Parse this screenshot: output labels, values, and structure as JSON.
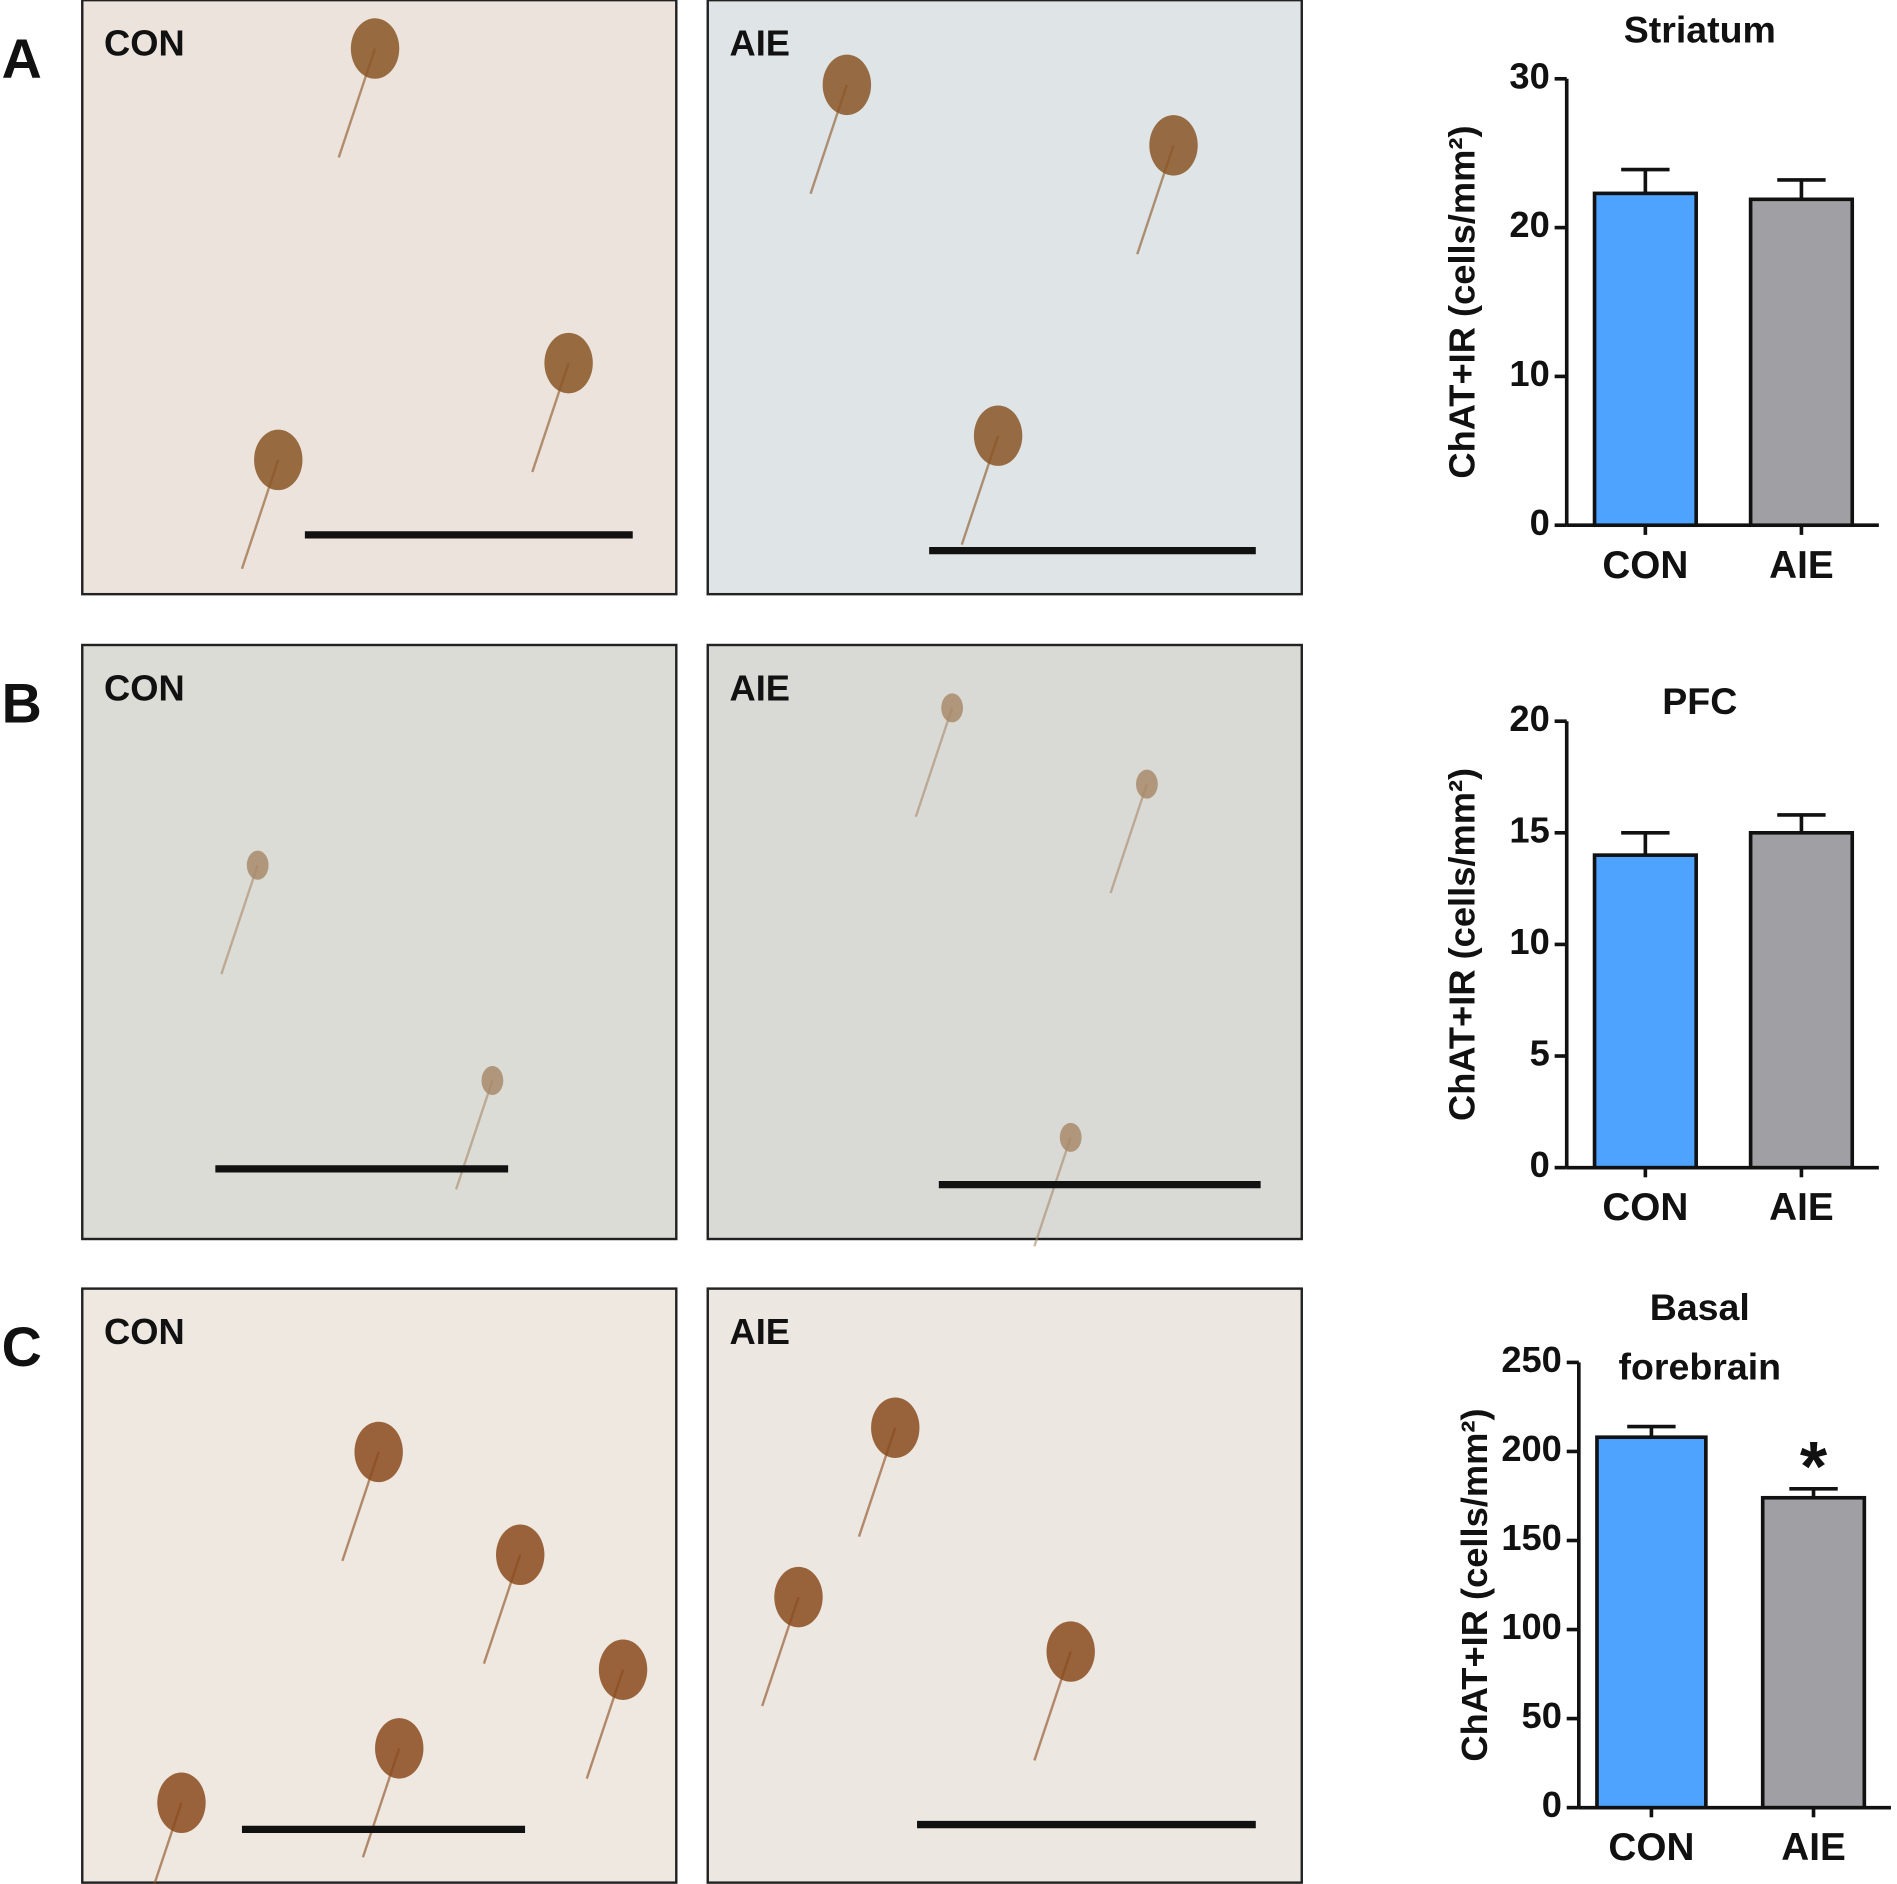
{
  "panels": [
    {
      "letter": "A",
      "images": [
        "CON",
        "AIE"
      ]
    },
    {
      "letter": "B",
      "images": [
        "CON",
        "AIE"
      ]
    },
    {
      "letter": "C",
      "images": [
        "CON",
        "AIE"
      ]
    }
  ],
  "chart_data": [
    {
      "type": "bar",
      "title": "Striatum",
      "ylabel": "ChAT+IR (cells/mm²)",
      "categories": [
        "CON",
        "AIE"
      ],
      "values": [
        22.3,
        21.9
      ],
      "errors": [
        1.6,
        1.3
      ],
      "colors": [
        "#4da3ff",
        "#a0a0a4"
      ],
      "ylim": [
        0,
        30
      ],
      "yticks": [
        0,
        10,
        20,
        30
      ]
    },
    {
      "type": "bar",
      "title": "PFC",
      "ylabel": "ChAT+IR (cells/mm²)",
      "categories": [
        "CON",
        "AIE"
      ],
      "values": [
        14.0,
        15.0
      ],
      "errors": [
        1.0,
        0.8
      ],
      "colors": [
        "#4da3ff",
        "#a0a0a4"
      ],
      "ylim": [
        0,
        20
      ],
      "yticks": [
        0,
        5,
        10,
        15,
        20
      ]
    },
    {
      "type": "bar",
      "title": "Basal forebrain",
      "ylabel": "ChAT+IR (cells/mm²)",
      "categories": [
        "CON",
        "AIE"
      ],
      "values": [
        208,
        174
      ],
      "errors": [
        6,
        5
      ],
      "colors": [
        "#4da3ff",
        "#a0a0a4"
      ],
      "ylim": [
        0,
        250
      ],
      "yticks": [
        0,
        50,
        100,
        150,
        200,
        250
      ],
      "annotation": "*"
    }
  ]
}
